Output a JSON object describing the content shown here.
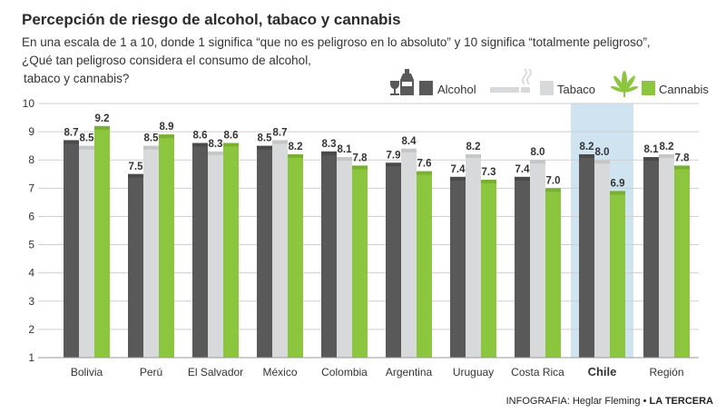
{
  "title": "Percepción de riesgo de alcohol, tabaco y cannabis",
  "subtitle_line1": "En una escala de 1 a 10, donde 1 significa “que no es peligroso en lo absoluto” y 10 significa “totalmente peligroso”,",
  "subtitle_line2": "¿Qué tan peligroso considera el consumo de alcohol,",
  "subtitle_line3": "tabaco y cannabis?",
  "colors": {
    "alcohol": "#595959",
    "tabaco": "#d7d9db",
    "cannabis": "#8cc63f",
    "highlight": "#cfe3f1"
  },
  "legend": [
    {
      "label": "Alcohol",
      "color": "#595959",
      "icon": "bottle-glass-icon"
    },
    {
      "label": "Tabaco",
      "color": "#d7d9db",
      "icon": "cigarette-icon"
    },
    {
      "label": "Cannabis",
      "color": "#8cc63f",
      "icon": "cannabis-leaf-icon"
    }
  ],
  "footer": {
    "credit": "INFOGRAFIA: Heglar Fleming",
    "brand": "LA TERCERA"
  },
  "chart_data": {
    "type": "bar",
    "title": "Percepción de riesgo de alcohol, tabaco y cannabis",
    "categories": [
      "Bolivia",
      "Perú",
      "El Salvador",
      "México",
      "Colombia",
      "Argentina",
      "Uruguay",
      "Costa Rica",
      "Chile",
      "Región"
    ],
    "highlight": "Chile",
    "series": [
      {
        "name": "Alcohol",
        "values": [
          8.7,
          7.5,
          8.6,
          8.5,
          8.3,
          7.9,
          7.4,
          7.4,
          8.2,
          8.1
        ]
      },
      {
        "name": "Tabaco",
        "values": [
          8.5,
          8.5,
          8.3,
          8.7,
          8.1,
          8.4,
          8.2,
          8.0,
          8.0,
          8.2
        ]
      },
      {
        "name": "Cannabis",
        "values": [
          9.2,
          8.9,
          8.6,
          8.2,
          7.8,
          7.6,
          7.3,
          7.0,
          6.9,
          7.8
        ]
      }
    ],
    "ylim": [
      1,
      10
    ],
    "yticks": [
      1,
      2,
      3,
      4,
      5,
      6,
      7,
      8,
      9,
      10
    ],
    "grid": true,
    "legend_position": "top-right"
  }
}
